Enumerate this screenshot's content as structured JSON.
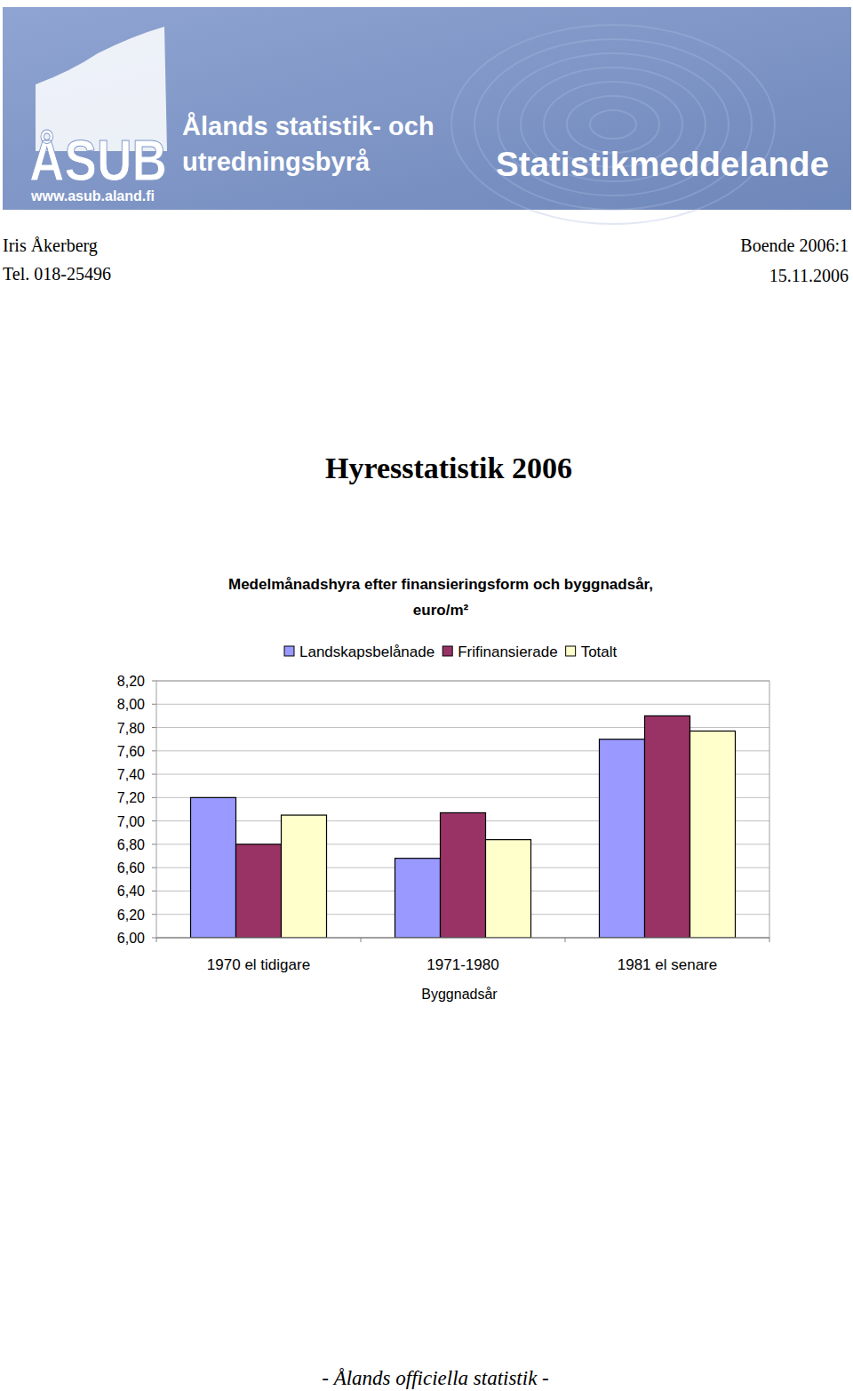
{
  "page": {
    "banner": {
      "logo": "ÅSUB",
      "org_lines": [
        "Ålands statistik- och",
        "utredningsbyrå"
      ],
      "url": "www.asub.aland.fi",
      "series_name": "Statistikmeddelande"
    },
    "author": "Iris Åkerberg",
    "phone": "Tel. 018-25496",
    "issue": "Boende 2006:1",
    "date": "15.11.2006",
    "heading": "Hyresstatistik 2006",
    "footer": "- Ålands officiella statistik -"
  },
  "chart_data": {
    "type": "bar",
    "title": "Medelmånadshyra efter finansieringsform och byggnadsår, euro/m²",
    "x_label": "Byggnadsår",
    "categories": [
      "1970 el tidigare",
      "1971-1980",
      "1981 el senare"
    ],
    "series": [
      {
        "name": "Landskapsbelånade",
        "color": "#9999ff",
        "values": [
          7.2,
          6.68,
          7.7
        ]
      },
      {
        "name": "Frifinansierade",
        "color": "#993366",
        "values": [
          6.8,
          7.07,
          7.9
        ]
      },
      {
        "name": "Totalt",
        "color": "#ffffcc",
        "values": [
          7.05,
          6.84,
          7.77
        ]
      }
    ],
    "ylim": [
      6.0,
      8.2
    ],
    "yticks": [
      {
        "value": 6.0,
        "label": "6,00"
      },
      {
        "value": 6.2,
        "label": "6,20"
      },
      {
        "value": 6.4,
        "label": "6,40"
      },
      {
        "value": 6.6,
        "label": "6,60"
      },
      {
        "value": 6.8,
        "label": "6,80"
      },
      {
        "value": 7.0,
        "label": "7,00"
      },
      {
        "value": 7.2,
        "label": "7,20"
      },
      {
        "value": 7.4,
        "label": "7,40"
      },
      {
        "value": 7.6,
        "label": "7,60"
      },
      {
        "value": 7.8,
        "label": "7,80"
      },
      {
        "value": 8.0,
        "label": "8,00"
      },
      {
        "value": 8.2,
        "label": "8,20"
      }
    ],
    "grid": true,
    "legend": "top"
  }
}
